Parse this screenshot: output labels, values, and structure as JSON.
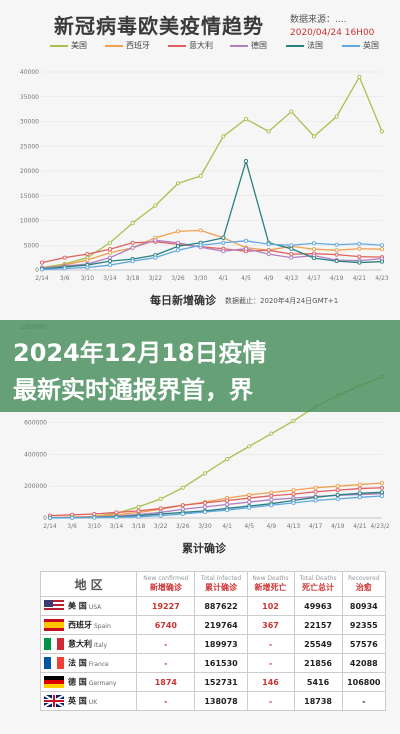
{
  "header": {
    "title": "新冠病毒欧美疫情趋势",
    "source": "数据来源：....",
    "date": "2020/04/24 16H00"
  },
  "legend": [
    {
      "name": "美国",
      "color": "#a8c050"
    },
    {
      "name": "西班牙",
      "color": "#f0a050"
    },
    {
      "name": "意大利",
      "color": "#e06060"
    },
    {
      "name": "德国",
      "color": "#b080c0"
    },
    {
      "name": "法国",
      "color": "#2a8080"
    },
    {
      "name": "英国",
      "color": "#60a8e0"
    }
  ],
  "banner": {
    "line1": "2024年12月18日疫情",
    "line2": "最新实时通报界首，界"
  },
  "chart_data": [
    {
      "type": "line",
      "title": "每日新增确诊",
      "subtitle": "数据截止：2020年4月24日GMT+1",
      "x": [
        "2/14",
        "3/6",
        "3/10",
        "3/14",
        "3/18",
        "3/22",
        "3/26",
        "3/30",
        "4/1",
        "4/5",
        "4/9",
        "4/13",
        "4/17",
        "4/19",
        "4/21",
        "4/23"
      ],
      "ylim": [
        0,
        40000
      ],
      "yticks": [
        0,
        5000,
        10000,
        15000,
        20000,
        25000,
        30000,
        35000,
        40000
      ],
      "series": [
        {
          "name": "美国",
          "values": [
            500,
            1200,
            2500,
            5500,
            9500,
            13000,
            17500,
            19000,
            27000,
            30500,
            28000,
            32000,
            27000,
            31000,
            39000,
            28000
          ]
        },
        {
          "name": "西班牙",
          "values": [
            300,
            1000,
            2000,
            3500,
            4500,
            6500,
            7800,
            8000,
            6500,
            4500,
            4000,
            4800,
            4200,
            4000,
            4300,
            4200
          ]
        },
        {
          "name": "意大利",
          "values": [
            1500,
            2500,
            3200,
            4200,
            5500,
            5700,
            5200,
            4700,
            4300,
            3800,
            4000,
            3200,
            3300,
            3100,
            2700,
            2600
          ]
        },
        {
          "name": "德国",
          "values": [
            400,
            800,
            1200,
            2500,
            4500,
            6000,
            5500,
            4600,
            3800,
            4300,
            3200,
            2500,
            2900,
            2000,
            1900,
            2300
          ]
        },
        {
          "name": "法国",
          "values": [
            200,
            600,
            1000,
            1800,
            2200,
            3000,
            4800,
            5500,
            6500,
            22000,
            5500,
            4300,
            2400,
            1800,
            1500,
            1700
          ]
        },
        {
          "name": "英国",
          "values": [
            100,
            300,
            500,
            1000,
            1800,
            2500,
            4000,
            5000,
            5500,
            5900,
            5200,
            5000,
            5400,
            5100,
            5300,
            5000
          ]
        }
      ]
    },
    {
      "type": "line",
      "title": "累计确诊",
      "x": [
        "2/14",
        "3/6",
        "3/10",
        "3/14",
        "3/18",
        "3/22",
        "3/26",
        "3/30",
        "4/1",
        "4/5",
        "4/9",
        "4/13",
        "4/17",
        "4/19",
        "4/21",
        "4/23/24"
      ],
      "ylim": [
        0,
        1200000
      ],
      "yticks": [
        0,
        200000,
        400000,
        600000,
        800000,
        1000000,
        1200000
      ],
      "series": [
        {
          "name": "美国",
          "values": [
            1000,
            3000,
            10000,
            30000,
            70000,
            120000,
            190000,
            280000,
            370000,
            450000,
            530000,
            610000,
            700000,
            770000,
            830000,
            887622
          ]
        },
        {
          "name": "西班牙",
          "values": [
            3000,
            6000,
            10000,
            20000,
            35000,
            55000,
            80000,
            100000,
            125000,
            145000,
            160000,
            175000,
            190000,
            200000,
            210000,
            219764
          ]
        },
        {
          "name": "意大利",
          "values": [
            15000,
            20000,
            25000,
            35000,
            45000,
            60000,
            80000,
            95000,
            110000,
            125000,
            140000,
            150000,
            165000,
            175000,
            185000,
            189973
          ]
        },
        {
          "name": "德国",
          "values": [
            1000,
            3000,
            6000,
            12000,
            22000,
            35000,
            55000,
            70000,
            85000,
            100000,
            115000,
            125000,
            135000,
            142000,
            148000,
            152731
          ]
        },
        {
          "name": "法国",
          "values": [
            1000,
            2000,
            4000,
            8000,
            15000,
            25000,
            35000,
            45000,
            60000,
            75000,
            90000,
            110000,
            130000,
            145000,
            155000,
            161530
          ]
        },
        {
          "name": "英国",
          "values": [
            500,
            1000,
            2000,
            4000,
            8000,
            15000,
            25000,
            38000,
            50000,
            65000,
            80000,
            95000,
            110000,
            120000,
            130000,
            138078
          ]
        }
      ]
    },
    {
      "type": "table",
      "columns": [
        {
          "en": "",
          "zh": "地 区"
        },
        {
          "en": "New confirmed",
          "zh": "新增确诊"
        },
        {
          "en": "Total infected",
          "zh": "累计确诊"
        },
        {
          "en": "New Deaths",
          "zh": "新增死亡"
        },
        {
          "en": "Total Deaths",
          "zh": "死亡总计"
        },
        {
          "en": "Recovered",
          "zh": "治愈"
        }
      ],
      "rows": [
        {
          "flag": "us",
          "zh": "美 国",
          "en": "USA",
          "values": [
            "19227",
            "887622",
            "102",
            "49963",
            "80934"
          ]
        },
        {
          "flag": "es",
          "zh": "西班牙",
          "en": "Spain",
          "values": [
            "6740",
            "219764",
            "367",
            "22157",
            "92355"
          ]
        },
        {
          "flag": "it",
          "zh": "意大利",
          "en": "Italy",
          "values": [
            "-",
            "189973",
            "-",
            "25549",
            "57576"
          ]
        },
        {
          "flag": "fr",
          "zh": "法 国",
          "en": "France",
          "values": [
            "-",
            "161530",
            "-",
            "21856",
            "42088"
          ]
        },
        {
          "flag": "de",
          "zh": "德 国",
          "en": "Germany",
          "values": [
            "1874",
            "152731",
            "146",
            "5416",
            "106800"
          ]
        },
        {
          "flag": "uk",
          "zh": "英 国",
          "en": "UK",
          "values": [
            "-",
            "138078",
            "-",
            "18738",
            "-"
          ]
        }
      ]
    }
  ]
}
